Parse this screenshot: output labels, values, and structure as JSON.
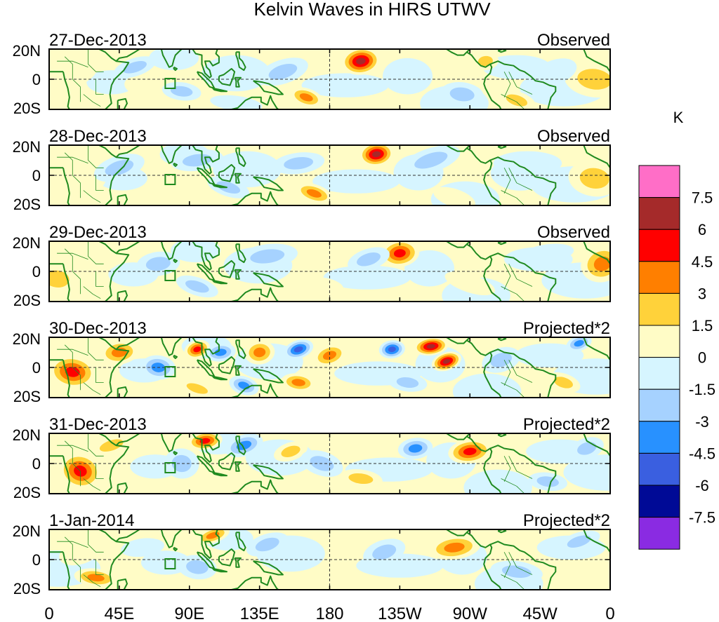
{
  "title": "Kelvin Waves in HIRS UTWV",
  "lat_labels": [
    "20N",
    "0",
    "20S"
  ],
  "lon_labels": [
    "0",
    "45E",
    "90E",
    "135E",
    "180",
    "135W",
    "90W",
    "45W",
    "0"
  ],
  "colorbar": {
    "unit": "K",
    "levels": [
      "7.5",
      "6",
      "4.5",
      "3",
      "1.5",
      "0",
      "-1.5",
      "-3",
      "-4.5",
      "-6",
      "-7.5"
    ],
    "colors": [
      "#ff6ec7",
      "#a52a2a",
      "#ff0000",
      "#ff7f00",
      "#ffd23a",
      "#fffcc6",
      "#d6f5ff",
      "#a6d2ff",
      "#2891ff",
      "#3a5fe0",
      "#000a96",
      "#8a2be2"
    ]
  },
  "panels": [
    {
      "date": "27-Dec-2013",
      "kind": "Observed"
    },
    {
      "date": "28-Dec-2013",
      "kind": "Observed"
    },
    {
      "date": "29-Dec-2013",
      "kind": "Observed"
    },
    {
      "date": "30-Dec-2013",
      "kind": "Projected*2"
    },
    {
      "date": "31-Dec-2013",
      "kind": "Projected*2"
    },
    {
      "date": "1-Jan-2014",
      "kind": "Projected*2"
    }
  ],
  "anomalies": [
    [
      {
        "lon": 200,
        "lat": 12,
        "v": 7,
        "rx": 9,
        "ry": 9
      },
      {
        "lon": 165,
        "lat": -12,
        "v": 5,
        "rx": 8,
        "ry": 6
      },
      {
        "lon": 350,
        "lat": 0,
        "v": 3.5,
        "rx": 14,
        "ry": 12
      },
      {
        "lon": 300,
        "lat": -14,
        "v": 3,
        "rx": 9,
        "ry": 6
      },
      {
        "lon": 280,
        "lat": 12,
        "v": 2.5,
        "rx": 6,
        "ry": 6
      },
      {
        "lon": 15,
        "lat": 5,
        "v": 2,
        "rx": 12,
        "ry": 10
      },
      {
        "lon": 65,
        "lat": -5,
        "v": 2,
        "rx": 12,
        "ry": 8
      },
      {
        "lon": 55,
        "lat": 8,
        "v": -3,
        "rx": 10,
        "ry": 6
      },
      {
        "lon": 85,
        "lat": -8,
        "v": -3,
        "rx": 9,
        "ry": 6
      },
      {
        "lon": 150,
        "lat": 5,
        "v": -2.5,
        "rx": 12,
        "ry": 8
      },
      {
        "lon": 265,
        "lat": -10,
        "v": -2.5,
        "rx": 10,
        "ry": 8
      },
      {
        "lon": 325,
        "lat": 5,
        "v": -2,
        "rx": 10,
        "ry": 8
      },
      {
        "lon": 120,
        "lat": -16,
        "v": -2,
        "rx": 12,
        "ry": 5
      }
    ],
    [
      {
        "lon": 210,
        "lat": 14,
        "v": 7,
        "rx": 8,
        "ry": 8
      },
      {
        "lon": 170,
        "lat": -12,
        "v": 5,
        "rx": 9,
        "ry": 6
      },
      {
        "lon": 350,
        "lat": -2,
        "v": 3.5,
        "rx": 12,
        "ry": 12
      },
      {
        "lon": 260,
        "lat": -15,
        "v": 2,
        "rx": 10,
        "ry": 6
      },
      {
        "lon": 20,
        "lat": 0,
        "v": 2,
        "rx": 12,
        "ry": 12
      },
      {
        "lon": 45,
        "lat": 5,
        "v": -3,
        "rx": 12,
        "ry": 8
      },
      {
        "lon": 95,
        "lat": 10,
        "v": -2.5,
        "rx": 12,
        "ry": 7
      },
      {
        "lon": 115,
        "lat": -8,
        "v": -3,
        "rx": 10,
        "ry": 6
      },
      {
        "lon": 160,
        "lat": 8,
        "v": -3,
        "rx": 12,
        "ry": 7
      },
      {
        "lon": 245,
        "lat": 10,
        "v": -2.5,
        "rx": 14,
        "ry": 8
      },
      {
        "lon": 300,
        "lat": 0,
        "v": -2,
        "rx": 12,
        "ry": 10
      }
    ],
    [
      {
        "lon": 225,
        "lat": 12,
        "v": 6.5,
        "rx": 9,
        "ry": 9
      },
      {
        "lon": 355,
        "lat": 5,
        "v": 4,
        "rx": 10,
        "ry": 12
      },
      {
        "lon": 5,
        "lat": -5,
        "v": 3,
        "rx": 10,
        "ry": 10
      },
      {
        "lon": 30,
        "lat": 8,
        "v": 2,
        "rx": 14,
        "ry": 10
      },
      {
        "lon": 175,
        "lat": -10,
        "v": 2,
        "rx": 10,
        "ry": 6
      },
      {
        "lon": 270,
        "lat": -8,
        "v": 1.8,
        "rx": 12,
        "ry": 6
      },
      {
        "lon": 70,
        "lat": 5,
        "v": -3,
        "rx": 10,
        "ry": 8
      },
      {
        "lon": 95,
        "lat": -10,
        "v": -3,
        "rx": 10,
        "ry": 6
      },
      {
        "lon": 140,
        "lat": 10,
        "v": -2.5,
        "rx": 14,
        "ry": 8
      },
      {
        "lon": 205,
        "lat": 8,
        "v": -3,
        "rx": 10,
        "ry": 7
      },
      {
        "lon": 320,
        "lat": 12,
        "v": -2,
        "rx": 12,
        "ry": 6
      }
    ],
    [
      {
        "lon": 245,
        "lat": 14,
        "v": 8,
        "rx": 8,
        "ry": 6
      },
      {
        "lon": 255,
        "lat": 4,
        "v": 7.5,
        "rx": 7,
        "ry": 6
      },
      {
        "lon": 15,
        "lat": -3,
        "v": 6,
        "rx": 11,
        "ry": 11
      },
      {
        "lon": 95,
        "lat": 12,
        "v": 5.5,
        "rx": 6,
        "ry": 6
      },
      {
        "lon": 135,
        "lat": 10,
        "v": 5,
        "rx": 7,
        "ry": 8
      },
      {
        "lon": 180,
        "lat": 8,
        "v": 5,
        "rx": 8,
        "ry": 7
      },
      {
        "lon": 45,
        "lat": 10,
        "v": 4,
        "rx": 9,
        "ry": 8
      },
      {
        "lon": 95,
        "lat": -14,
        "v": 3.5,
        "rx": 9,
        "ry": 5
      },
      {
        "lon": 160,
        "lat": -10,
        "v": 4,
        "rx": 8,
        "ry": 6
      },
      {
        "lon": 330,
        "lat": -10,
        "v": 3,
        "rx": 8,
        "ry": 6
      },
      {
        "lon": 220,
        "lat": 12,
        "v": -6.5,
        "rx": 6,
        "ry": 6
      },
      {
        "lon": 160,
        "lat": 12,
        "v": -5.5,
        "rx": 7,
        "ry": 6
      },
      {
        "lon": 110,
        "lat": 10,
        "v": -5,
        "rx": 7,
        "ry": 6
      },
      {
        "lon": 340,
        "lat": 16,
        "v": -5,
        "rx": 6,
        "ry": 5
      },
      {
        "lon": 70,
        "lat": 0,
        "v": -4,
        "rx": 8,
        "ry": 8
      },
      {
        "lon": 125,
        "lat": -12,
        "v": -4,
        "rx": 7,
        "ry": 6
      },
      {
        "lon": 230,
        "lat": -10,
        "v": -3,
        "rx": 9,
        "ry": 6
      },
      {
        "lon": 290,
        "lat": 5,
        "v": -3,
        "rx": 9,
        "ry": 8
      }
    ],
    [
      {
        "lon": 270,
        "lat": 8,
        "v": 6.5,
        "rx": 10,
        "ry": 8
      },
      {
        "lon": 20,
        "lat": -5,
        "v": 6.5,
        "rx": 10,
        "ry": 12
      },
      {
        "lon": 100,
        "lat": 15,
        "v": 6,
        "rx": 8,
        "ry": 6
      },
      {
        "lon": 155,
        "lat": 8,
        "v": 3.5,
        "rx": 8,
        "ry": 6
      },
      {
        "lon": 200,
        "lat": -10,
        "v": 3,
        "rx": 10,
        "ry": 6
      },
      {
        "lon": 40,
        "lat": 12,
        "v": 2.5,
        "rx": 10,
        "ry": 6
      },
      {
        "lon": 235,
        "lat": 10,
        "v": -5,
        "rx": 8,
        "ry": 7
      },
      {
        "lon": 125,
        "lat": 12,
        "v": -4.5,
        "rx": 9,
        "ry": 7
      },
      {
        "lon": 85,
        "lat": 0,
        "v": -3.5,
        "rx": 8,
        "ry": 10
      },
      {
        "lon": 175,
        "lat": 0,
        "v": -3,
        "rx": 10,
        "ry": 8
      },
      {
        "lon": 320,
        "lat": -12,
        "v": -3.5,
        "rx": 9,
        "ry": 6
      },
      {
        "lon": 345,
        "lat": 10,
        "v": -3,
        "rx": 8,
        "ry": 7
      }
    ],
    [
      {
        "lon": 260,
        "lat": 8,
        "v": 5,
        "rx": 12,
        "ry": 8
      },
      {
        "lon": 105,
        "lat": 16,
        "v": 5,
        "rx": 8,
        "ry": 5
      },
      {
        "lon": 30,
        "lat": -12,
        "v": 4,
        "rx": 10,
        "ry": 6
      },
      {
        "lon": 20,
        "lat": 5,
        "v": 2,
        "rx": 10,
        "ry": 8
      },
      {
        "lon": 180,
        "lat": -10,
        "v": 2,
        "rx": 10,
        "ry": 6
      },
      {
        "lon": 140,
        "lat": 10,
        "v": -3.5,
        "rx": 10,
        "ry": 7
      },
      {
        "lon": 95,
        "lat": -5,
        "v": -3,
        "rx": 9,
        "ry": 8
      },
      {
        "lon": 215,
        "lat": 5,
        "v": -3,
        "rx": 10,
        "ry": 8
      },
      {
        "lon": 300,
        "lat": -8,
        "v": -3,
        "rx": 12,
        "ry": 7
      },
      {
        "lon": 340,
        "lat": 12,
        "v": -2.5,
        "rx": 10,
        "ry": 6
      },
      {
        "lon": 60,
        "lat": 8,
        "v": -2,
        "rx": 10,
        "ry": 6
      }
    ]
  ]
}
